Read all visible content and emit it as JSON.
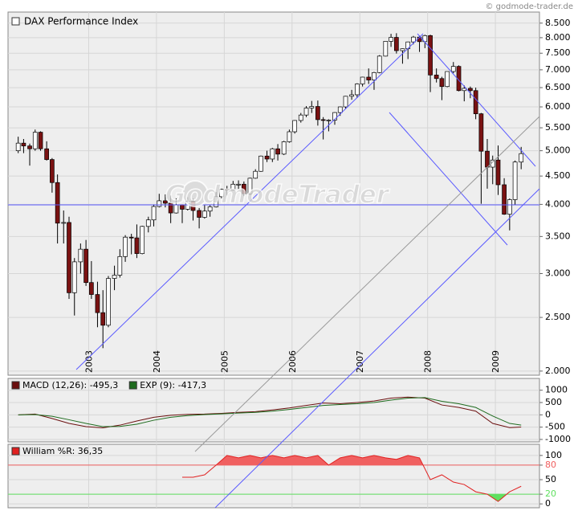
{
  "chart_data": [
    {
      "type": "candlestick",
      "title": "DAX Performance Index",
      "source": "© godmode-trader.de",
      "watermark": "GodmodeTrader",
      "x": [
        2001.96,
        2002.04,
        2002.13,
        2002.21,
        2002.29,
        2002.38,
        2002.46,
        2002.54,
        2002.63,
        2002.71,
        2002.79,
        2002.88,
        2002.96,
        2003.04,
        2003.13,
        2003.21,
        2003.29,
        2003.38,
        2003.46,
        2003.54,
        2003.63,
        2003.71,
        2003.79,
        2003.88,
        2003.96,
        2004.04,
        2004.13,
        2004.21,
        2004.29,
        2004.38,
        2004.46,
        2004.54,
        2004.63,
        2004.71,
        2004.79,
        2004.88,
        2004.96,
        2005.04,
        2005.13,
        2005.21,
        2005.29,
        2005.38,
        2005.46,
        2005.54,
        2005.63,
        2005.71,
        2005.79,
        2005.88,
        2005.96,
        2006.04,
        2006.13,
        2006.21,
        2006.29,
        2006.38,
        2006.46,
        2006.54,
        2006.63,
        2006.71,
        2006.79,
        2006.88,
        2006.96,
        2007.04,
        2007.13,
        2007.21,
        2007.29,
        2007.38,
        2007.46,
        2007.54,
        2007.63,
        2007.71,
        2007.79,
        2007.88,
        2007.96,
        2008.04,
        2008.13,
        2008.21,
        2008.29,
        2008.38,
        2008.46,
        2008.54,
        2008.63,
        2008.71,
        2008.79,
        2008.88,
        2008.96,
        2009.04,
        2009.13,
        2009.21,
        2009.29,
        2009.38
      ],
      "open": [
        5000,
        5160,
        5100,
        5040,
        5400,
        5040,
        4820,
        4380,
        3700,
        3710,
        2770,
        3150,
        3320,
        2890,
        2750,
        2550,
        2420,
        2940,
        2980,
        3220,
        3490,
        3480,
        3260,
        3650,
        3750,
        3965,
        4060,
        4020,
        3860,
        3990,
        3920,
        4050,
        3900,
        3790,
        3890,
        3960,
        4130,
        4260,
        4250,
        4350,
        4350,
        4180,
        4460,
        4590,
        4890,
        4830,
        5040,
        4930,
        5190,
        5410,
        5670,
        5800,
        5970,
        6010,
        5690,
        5680,
        5680,
        5860,
        6000,
        6270,
        6310,
        6600,
        6790,
        6710,
        6920,
        7410,
        7880,
        8010,
        7580,
        7640,
        7860,
        8020,
        7870,
        8070,
        6850,
        6750,
        6530,
        6950,
        7100,
        6420,
        6480,
        6420,
        5830,
        4990,
        4670,
        4810,
        4340,
        3840,
        4080,
        4770
      ],
      "high": [
        5300,
        5250,
        5150,
        5460,
        5420,
        5200,
        4850,
        4530,
        3900,
        3800,
        3200,
        3400,
        3450,
        3160,
        2900,
        2800,
        2970,
        3100,
        3320,
        3520,
        3540,
        3680,
        3660,
        3800,
        4000,
        4180,
        4170,
        4150,
        4100,
        4000,
        4120,
        4100,
        3940,
        3990,
        3990,
        4210,
        4270,
        4320,
        4410,
        4420,
        4400,
        4470,
        4630,
        4900,
        5000,
        5060,
        5140,
        5210,
        5460,
        5680,
        5850,
        6020,
        6150,
        6160,
        5750,
        5700,
        5870,
        6010,
        6280,
        6440,
        6620,
        6800,
        7040,
        6940,
        7440,
        7880,
        8130,
        8150,
        7650,
        7870,
        8060,
        8070,
        8100,
        8100,
        7040,
        6800,
        6950,
        7230,
        7130,
        6560,
        6530,
        6500,
        5850,
        5250,
        4900,
        5110,
        4460,
        4100,
        4800,
        5080
      ],
      "low": [
        4950,
        4950,
        4700,
        5000,
        5000,
        4800,
        4200,
        3400,
        3400,
        2700,
        2520,
        3000,
        2850,
        2700,
        2400,
        2200,
        2400,
        2800,
        2950,
        3150,
        3250,
        3200,
        3250,
        3560,
        3650,
        3950,
        3950,
        3700,
        3850,
        3700,
        3900,
        3740,
        3620,
        3770,
        3800,
        3950,
        4100,
        4150,
        4240,
        4260,
        4140,
        4160,
        4450,
        4580,
        4770,
        4770,
        4800,
        4910,
        5170,
        5370,
        5620,
        5750,
        5850,
        5550,
        5240,
        5420,
        5570,
        5780,
        5960,
        6180,
        6230,
        6530,
        6600,
        6440,
        6900,
        7400,
        7700,
        7490,
        7180,
        7320,
        7780,
        7540,
        7660,
        6380,
        6640,
        6170,
        6510,
        6900,
        6400,
        6140,
        6220,
        5700,
        4010,
        4270,
        4350,
        4160,
        3830,
        3590,
        3990,
        4630
      ],
      "close": [
        5160,
        5100,
        5040,
        5400,
        5040,
        4820,
        4380,
        3700,
        3710,
        2770,
        3150,
        3320,
        2890,
        2750,
        2550,
        2420,
        2940,
        2980,
        3220,
        3490,
        3480,
        3260,
        3650,
        3750,
        3965,
        4060,
        4020,
        3860,
        3990,
        3920,
        4050,
        3900,
        3790,
        3890,
        3960,
        4130,
        4260,
        4250,
        4350,
        4350,
        4180,
        4460,
        4590,
        4890,
        4830,
        5040,
        4930,
        5190,
        5410,
        5670,
        5800,
        5970,
        6010,
        5690,
        5680,
        5680,
        5860,
        6000,
        6270,
        6310,
        6600,
        6790,
        6710,
        6920,
        7410,
        7880,
        8010,
        7580,
        7640,
        7860,
        8020,
        7870,
        8070,
        6850,
        6750,
        6530,
        6950,
        7100,
        6420,
        6480,
        6420,
        5830,
        4990,
        4670,
        4810,
        4340,
        3840,
        4080,
        4770,
        4940
      ],
      "up_color": "#ffffff",
      "down_color": "#7a1212",
      "xlim": [
        2001.81,
        2009.65
      ],
      "xticks": [
        2003,
        2004,
        2005,
        2006,
        2007,
        2008,
        2009
      ],
      "ylim": [
        1966,
        8900
      ],
      "log_scale": true,
      "grid": true,
      "yticks": [
        {
          "value": 2000,
          "label": "2.000"
        },
        {
          "value": 2500,
          "label": "2.500"
        },
        {
          "value": 3000,
          "label": "3.000"
        },
        {
          "value": 3500,
          "label": "3.500"
        },
        {
          "value": 4000,
          "label": "4.000"
        },
        {
          "value": 4500,
          "label": "4.500"
        },
        {
          "value": 5000,
          "label": "5.000"
        },
        {
          "value": 5500,
          "label": "5.500"
        },
        {
          "value": 6000,
          "label": "6.000"
        },
        {
          "value": 6500,
          "label": "6.500"
        },
        {
          "value": 7000,
          "label": "7.000"
        },
        {
          "value": 7500,
          "label": "7.500"
        },
        {
          "value": 8000,
          "label": "8.000"
        },
        {
          "value": 8500,
          "label": "8.500"
        }
      ]
    },
    {
      "type": "line",
      "x": [
        2001.96,
        2002.21,
        2002.46,
        2002.71,
        2002.96,
        2003.21,
        2003.46,
        2003.71,
        2003.96,
        2004.21,
        2004.46,
        2004.71,
        2004.96,
        2005.21,
        2005.46,
        2005.71,
        2005.96,
        2006.21,
        2006.46,
        2006.71,
        2006.96,
        2007.21,
        2007.46,
        2007.71,
        2007.96,
        2008.21,
        2008.46,
        2008.71,
        2008.96,
        2009.21,
        2009.38
      ],
      "series": [
        {
          "name": "MACD (12,26): -495,3",
          "color": "#6b0f0f",
          "values": [
            0,
            30,
            -150,
            -350,
            -480,
            -530,
            -420,
            -250,
            -100,
            -20,
            20,
            30,
            60,
            100,
            130,
            200,
            280,
            380,
            480,
            450,
            500,
            560,
            680,
            720,
            680,
            400,
            300,
            150,
            -350,
            -520,
            -495
          ]
        },
        {
          "name": "EXP (9): -417,3",
          "color": "#1e6b1e",
          "values": [
            0,
            10,
            -60,
            -200,
            -350,
            -480,
            -470,
            -380,
            -220,
            -100,
            -30,
            10,
            40,
            70,
            100,
            150,
            220,
            300,
            380,
            420,
            450,
            500,
            600,
            680,
            700,
            550,
            450,
            300,
            -50,
            -350,
            -417
          ]
        }
      ],
      "xlim": [
        2001.81,
        2009.65
      ],
      "ylim": [
        -1100,
        1480
      ],
      "yticks": [
        -1000,
        -500,
        0,
        500,
        1000
      ],
      "grid": true
    },
    {
      "type": "line",
      "x": [
        2004.38,
        2004.54,
        2004.71,
        2004.88,
        2005.04,
        2005.21,
        2005.38,
        2005.54,
        2005.71,
        2005.88,
        2006.04,
        2006.21,
        2006.38,
        2006.54,
        2006.71,
        2006.88,
        2007.04,
        2007.21,
        2007.38,
        2007.54,
        2007.71,
        2007.88,
        2008.04,
        2008.21,
        2008.38,
        2008.54,
        2008.71,
        2008.88,
        2009.04,
        2009.21,
        2009.38
      ],
      "series": [
        {
          "name": "William %R: 36,35",
          "color": "#e02020",
          "values": [
            55,
            55,
            60,
            80,
            100,
            95,
            100,
            95,
            100,
            95,
            100,
            95,
            100,
            80,
            95,
            100,
            95,
            100,
            95,
            92,
            100,
            95,
            50,
            60,
            45,
            40,
            25,
            20,
            5,
            25,
            36.35
          ]
        }
      ],
      "fill_above": 80,
      "fill_above_color": "#f06060",
      "fill_below": 20,
      "fill_below_color": "#60e060",
      "xlim": [
        2001.81,
        2009.65
      ],
      "ylim": [
        -8,
        123
      ],
      "yticks": [
        0,
        20,
        50,
        80,
        100
      ],
      "grid": true
    }
  ]
}
